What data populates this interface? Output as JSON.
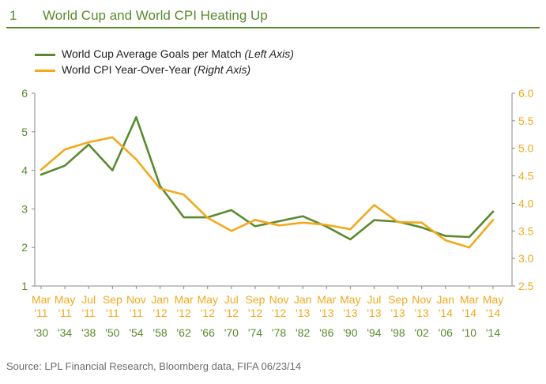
{
  "figure": {
    "number": "1",
    "title": "World Cup and World CPI Heating Up"
  },
  "legend": [
    {
      "label": "World Cup Average Goals per Match",
      "note": "(Left Axis)",
      "color": "#5a8a2e"
    },
    {
      "label": "World CPI Year-Over-Year",
      "note": "(Right Axis)",
      "color": "#f2a91d"
    }
  ],
  "source": "Source: LPL Financial Research, Bloomberg data, FIFA   06/23/14",
  "chart_data": {
    "type": "line",
    "categories_top": [
      [
        "Mar",
        "'11"
      ],
      [
        "May",
        "'11"
      ],
      [
        "Jul",
        "'11"
      ],
      [
        "Sep",
        "'11"
      ],
      [
        "Nov",
        "'11"
      ],
      [
        "Jan",
        "'12"
      ],
      [
        "Mar",
        "'12"
      ],
      [
        "May",
        "'12"
      ],
      [
        "Jul",
        "'12"
      ],
      [
        "Sep",
        "'12"
      ],
      [
        "Nov",
        "'12"
      ],
      [
        "Jan",
        "'13"
      ],
      [
        "Mar",
        "'13"
      ],
      [
        "May",
        "'13"
      ],
      [
        "Jul",
        "'13"
      ],
      [
        "Sep",
        "'13"
      ],
      [
        "Nov",
        "'13"
      ],
      [
        "Jan",
        "'14"
      ],
      [
        "Mar",
        "'14"
      ],
      [
        "May",
        "'14"
      ]
    ],
    "categories_bottom": [
      "'30",
      "'34",
      "'38",
      "'50",
      "'54",
      "'58",
      "'62",
      "'66",
      "'70",
      "'74",
      "'78",
      "'82",
      "'86",
      "'90",
      "'94",
      "'98",
      "'02",
      "'06",
      "'10",
      "'14"
    ],
    "left_axis": {
      "min": 1,
      "max": 6,
      "ticks": [
        1,
        2,
        3,
        4,
        5,
        6
      ],
      "color": "#5a8a2e"
    },
    "right_axis": {
      "min": 2.5,
      "max": 6.0,
      "ticks": [
        "2.5",
        "3.0",
        "3.5",
        "4.0",
        "4.5",
        "5.0",
        "5.5",
        "6.0"
      ],
      "color": "#f2a91d"
    },
    "series": [
      {
        "name": "World Cup Average Goals per Match",
        "axis": "left",
        "color": "#5a8a2e",
        "values": [
          3.89,
          4.12,
          4.67,
          4.0,
          5.38,
          3.6,
          2.78,
          2.78,
          2.97,
          2.55,
          2.68,
          2.81,
          2.54,
          2.21,
          2.71,
          2.67,
          2.52,
          2.3,
          2.27,
          2.93
        ]
      },
      {
        "name": "World CPI Year-Over-Year",
        "axis": "right",
        "color": "#f2a91d",
        "values": [
          4.61,
          4.98,
          5.11,
          5.2,
          4.8,
          4.27,
          4.16,
          3.74,
          3.5,
          3.7,
          3.6,
          3.65,
          3.61,
          3.53,
          3.97,
          3.66,
          3.65,
          3.33,
          3.2,
          3.7
        ]
      }
    ]
  }
}
